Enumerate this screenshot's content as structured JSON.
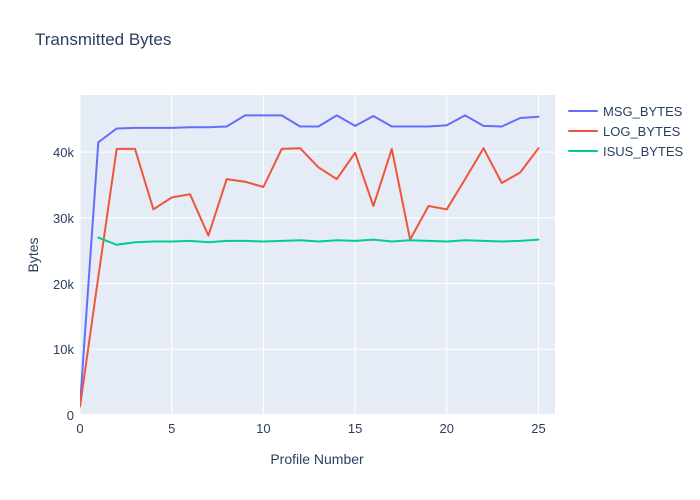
{
  "title": "Transmitted Bytes",
  "chart_data": {
    "type": "line",
    "title": "Transmitted Bytes",
    "xlabel": "Profile Number",
    "ylabel": "Bytes",
    "grid": true,
    "legend_position": "right",
    "plot_bg": "#E5ECF6",
    "grid_color": "#ffffff",
    "text_color": "#2a3f5f",
    "xlim": [
      0,
      25.9
    ],
    "ylim": [
      0,
      48700
    ],
    "xticks": [
      {
        "v": 0,
        "label": "0"
      },
      {
        "v": 5,
        "label": "5"
      },
      {
        "v": 10,
        "label": "10"
      },
      {
        "v": 15,
        "label": "15"
      },
      {
        "v": 20,
        "label": "20"
      },
      {
        "v": 25,
        "label": "25"
      }
    ],
    "yticks": [
      {
        "v": 0,
        "label": "0"
      },
      {
        "v": 10000,
        "label": "10k"
      },
      {
        "v": 20000,
        "label": "20k"
      },
      {
        "v": 30000,
        "label": "30k"
      },
      {
        "v": 40000,
        "label": "40k"
      }
    ],
    "x": [
      0,
      1,
      2,
      3,
      4,
      5,
      6,
      7,
      8,
      9,
      10,
      11,
      12,
      13,
      14,
      15,
      16,
      17,
      18,
      19,
      20,
      21,
      22,
      23,
      24,
      25
    ],
    "series": [
      {
        "name": "MSG_BYTES",
        "color": "#636EFA",
        "values": [
          1500,
          41500,
          43600,
          43700,
          43700,
          43700,
          43800,
          43800,
          43900,
          45600,
          45600,
          45600,
          43900,
          43900,
          45600,
          44000,
          45500,
          43900,
          43900,
          43900,
          44100,
          45600,
          44000,
          43900,
          45200,
          45400
        ]
      },
      {
        "name": "LOG_BYTES",
        "color": "#EF553B",
        "values": [
          1300,
          21000,
          40500,
          40500,
          31300,
          33100,
          33600,
          27300,
          35900,
          35500,
          34700,
          40500,
          40600,
          37700,
          35900,
          39900,
          31800,
          40500,
          26700,
          31800,
          31300,
          35900,
          40600,
          35300,
          36900,
          40600
        ]
      },
      {
        "name": "ISUS_BYTES",
        "color": "#00CC96",
        "values": [
          null,
          27000,
          25900,
          26300,
          26400,
          26400,
          26500,
          26300,
          26500,
          26500,
          26400,
          26500,
          26600,
          26400,
          26600,
          26500,
          26700,
          26400,
          26600,
          26500,
          26400,
          26600,
          26500,
          26400,
          26500,
          26700
        ]
      }
    ]
  }
}
